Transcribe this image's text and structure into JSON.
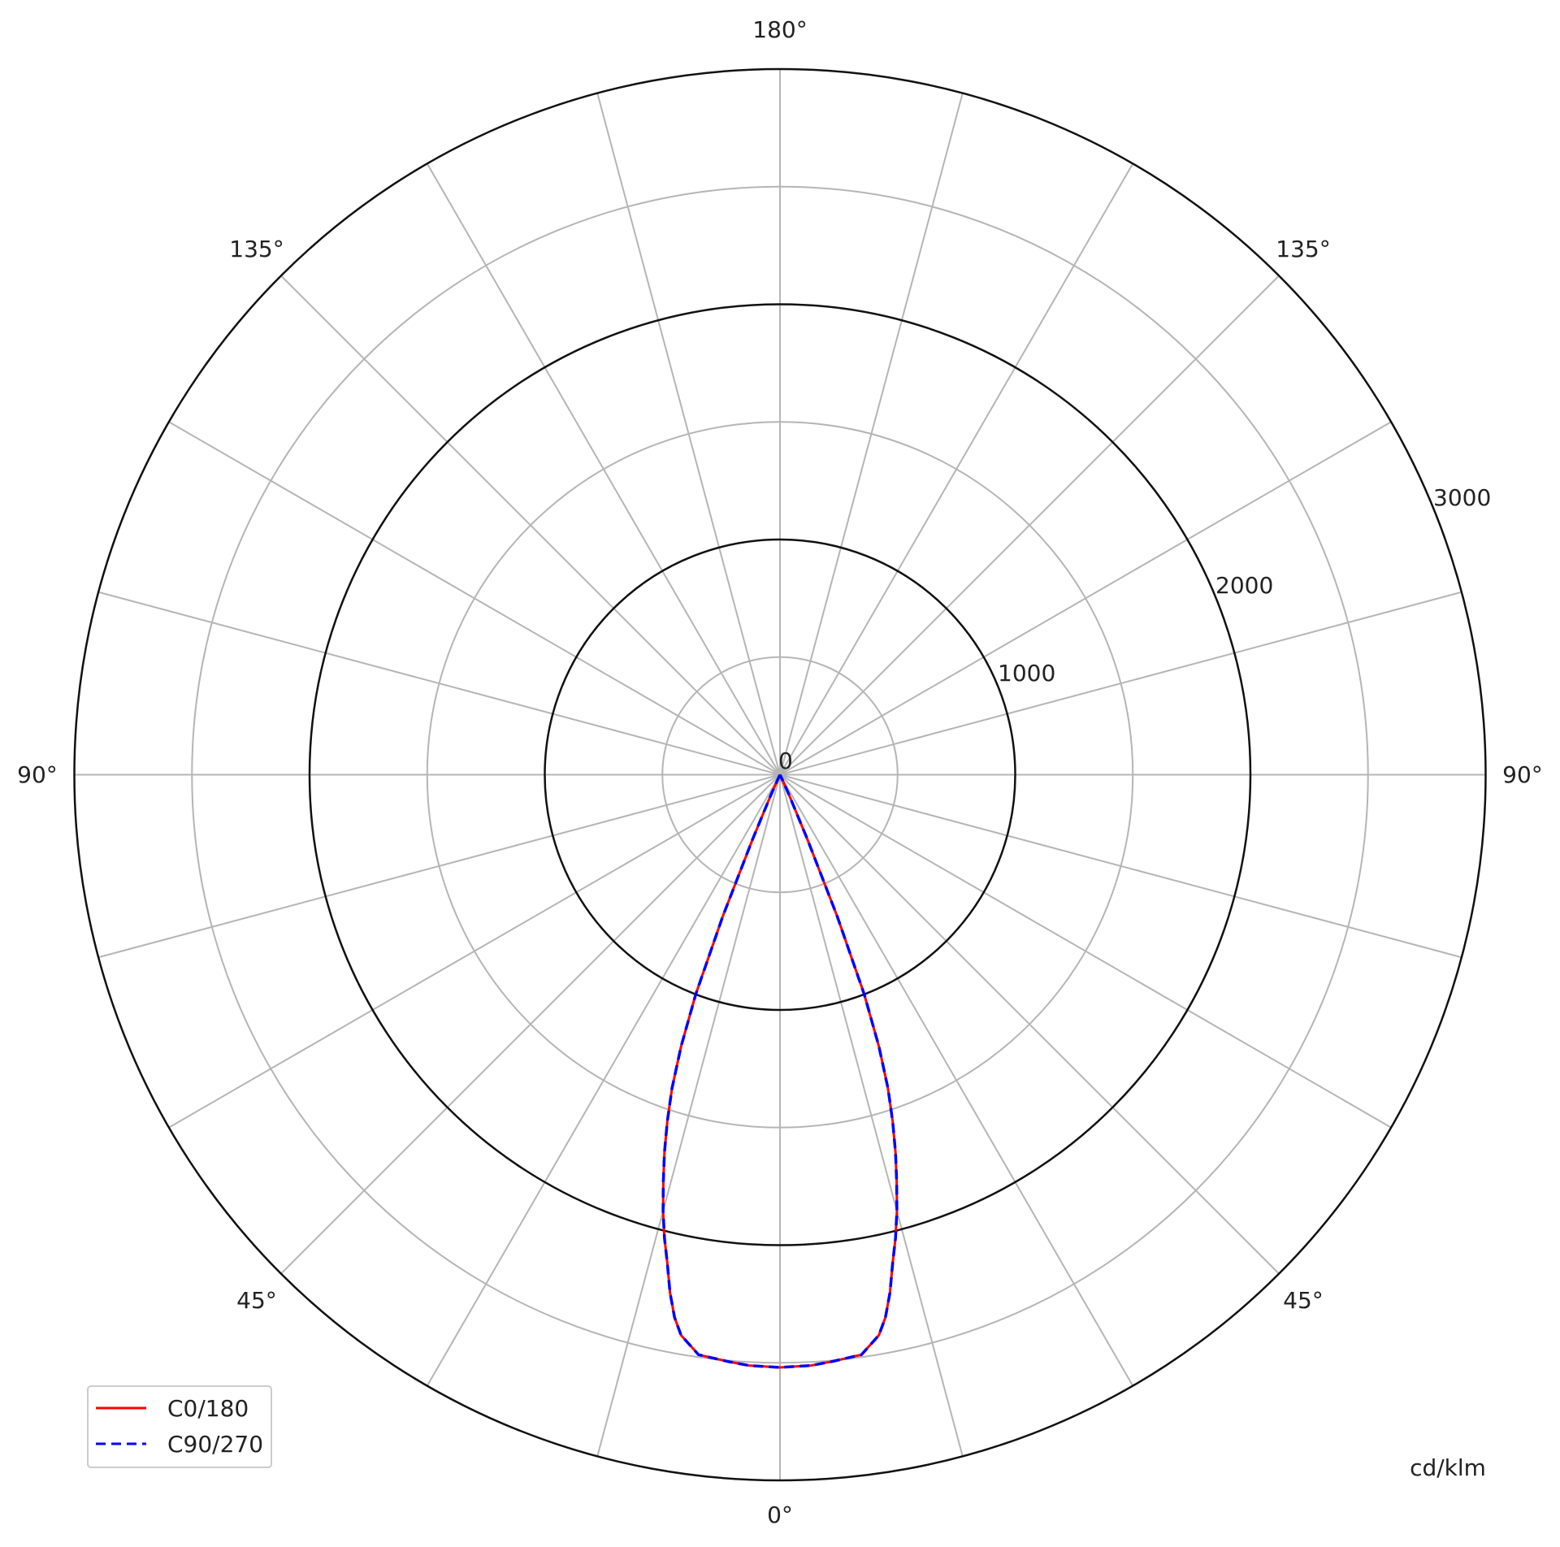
{
  "chart_data": {
    "type": "polar",
    "unit_label": "cd/klm",
    "radial_range": [
      0,
      3000
    ],
    "radial_ticks": [
      0,
      1000,
      2000,
      3000
    ],
    "radial_tick_labels": [
      "0",
      "1000",
      "2000",
      "3000"
    ],
    "radial_minor_rings": [
      500,
      1500,
      2500
    ],
    "angle_step_deg": 15,
    "angle_labels": {
      "top": "180°",
      "upper_left": "135°",
      "upper_right": "135°",
      "left": "90°",
      "right": "90°",
      "lower_left": "45°",
      "lower_right": "45°",
      "bottom": "0°"
    },
    "grid": true,
    "legend_position": "bottom-left",
    "gamma_deg": [
      0,
      3,
      5,
      8,
      10,
      11,
      12,
      13,
      14,
      15,
      16,
      17,
      18,
      19,
      20,
      21,
      22,
      23,
      24,
      25,
      30,
      45,
      60,
      75,
      90
    ],
    "series": [
      {
        "name": "C0/180",
        "color": "#ff0000",
        "dash": "solid",
        "values": [
          2520,
          2515,
          2505,
          2490,
          2420,
          2350,
          2250,
          2130,
          2030,
          1920,
          1800,
          1680,
          1550,
          1410,
          1230,
          1000,
          650,
          300,
          100,
          30,
          0,
          0,
          0,
          0,
          0
        ]
      },
      {
        "name": "C90/270",
        "color": "#0000ff",
        "dash": "dashed",
        "values": [
          2520,
          2515,
          2505,
          2490,
          2420,
          2350,
          2250,
          2130,
          2030,
          1920,
          1800,
          1680,
          1550,
          1410,
          1230,
          1000,
          650,
          300,
          100,
          30,
          0,
          0,
          0,
          0,
          0
        ]
      }
    ]
  }
}
